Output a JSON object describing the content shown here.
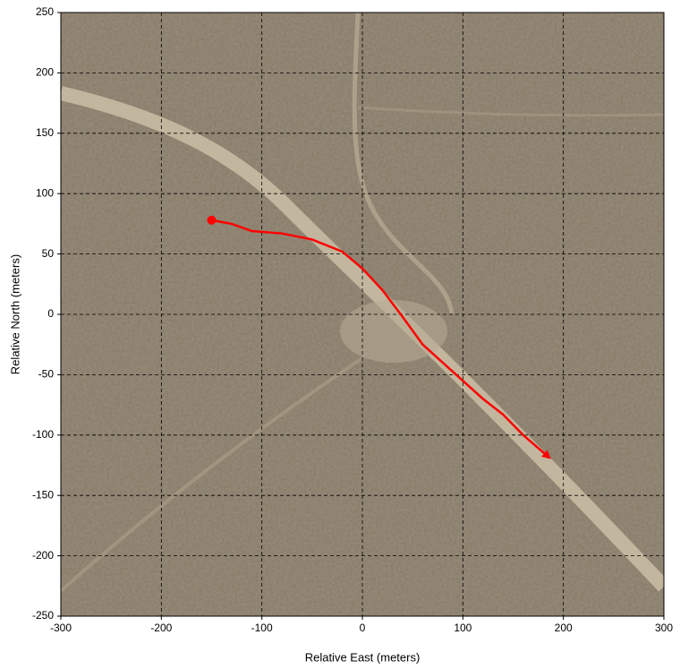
{
  "chart_data": {
    "type": "line",
    "xlabel": "Relative East (meters)",
    "ylabel": "Relative North (meters)",
    "x": [
      -150,
      -130,
      -110,
      -80,
      -50,
      -20,
      0,
      20,
      40,
      60,
      80,
      100,
      120,
      140,
      160,
      185
    ],
    "values": [
      78,
      75,
      69,
      67,
      62,
      52,
      38,
      20,
      -2,
      -25,
      -40,
      -55,
      -70,
      -83,
      -100,
      -118
    ],
    "color": "#ff0000",
    "xlim": [
      -300,
      300
    ],
    "xticks": [
      -300,
      -200,
      -100,
      0,
      100,
      200,
      300
    ],
    "ylim": [
      -250,
      250
    ],
    "yticks": [
      -250,
      -200,
      -150,
      -100,
      -50,
      0,
      50,
      100,
      150,
      200,
      250
    ],
    "grid": true
  }
}
